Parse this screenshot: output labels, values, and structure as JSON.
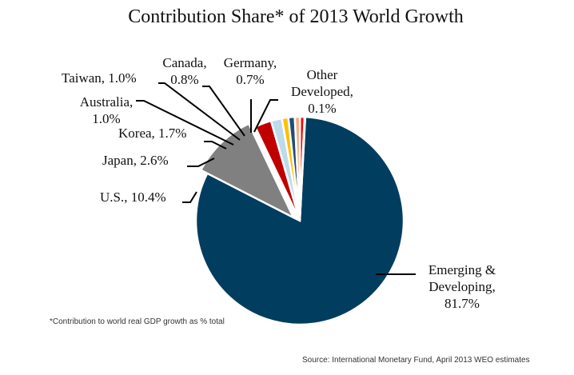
{
  "chart_data": {
    "type": "pie",
    "title": "Contribution Share* of 2013 World Growth",
    "footnote": "*Contribution to world real GDP growth as % total",
    "source": "Source: International Monetary Fund, April 2013 WEO estimates",
    "unit": "%",
    "slices": [
      {
        "name": "Emerging & Developing",
        "value": 81.7,
        "color": "#003D5F",
        "label_lines": [
          "Emerging &",
          "Developing,",
          "81.7%"
        ]
      },
      {
        "name": "U.S.",
        "value": 10.4,
        "color": "#808080",
        "label_lines": [
          "U.S., 10.4%"
        ]
      },
      {
        "name": "Japan",
        "value": 2.6,
        "color": "#C00000",
        "label_lines": [
          "Japan, 2.6%"
        ]
      },
      {
        "name": "Korea",
        "value": 1.7,
        "color": "#BDDBEA",
        "label_lines": [
          "Korea, 1.7%"
        ]
      },
      {
        "name": "Australia",
        "value": 1.0,
        "color": "#FFC000",
        "label_lines": [
          "Australia,",
          "1.0%"
        ]
      },
      {
        "name": "Taiwan",
        "value": 1.0,
        "color": "#1F4E79",
        "label_lines": [
          "Taiwan, 1.0%"
        ]
      },
      {
        "name": "Canada",
        "value": 0.8,
        "color": "#F4B183",
        "label_lines": [
          "Canada,",
          "0.8%"
        ]
      },
      {
        "name": "Germany",
        "value": 0.7,
        "color": "#FF0000",
        "label_lines": [
          "Germany,",
          "0.7%"
        ]
      },
      {
        "name": "Other Developed",
        "value": 0.1,
        "color": "#FFD7D7",
        "label_lines": [
          "Other",
          "Developed,",
          "0.1%"
        ]
      }
    ]
  }
}
